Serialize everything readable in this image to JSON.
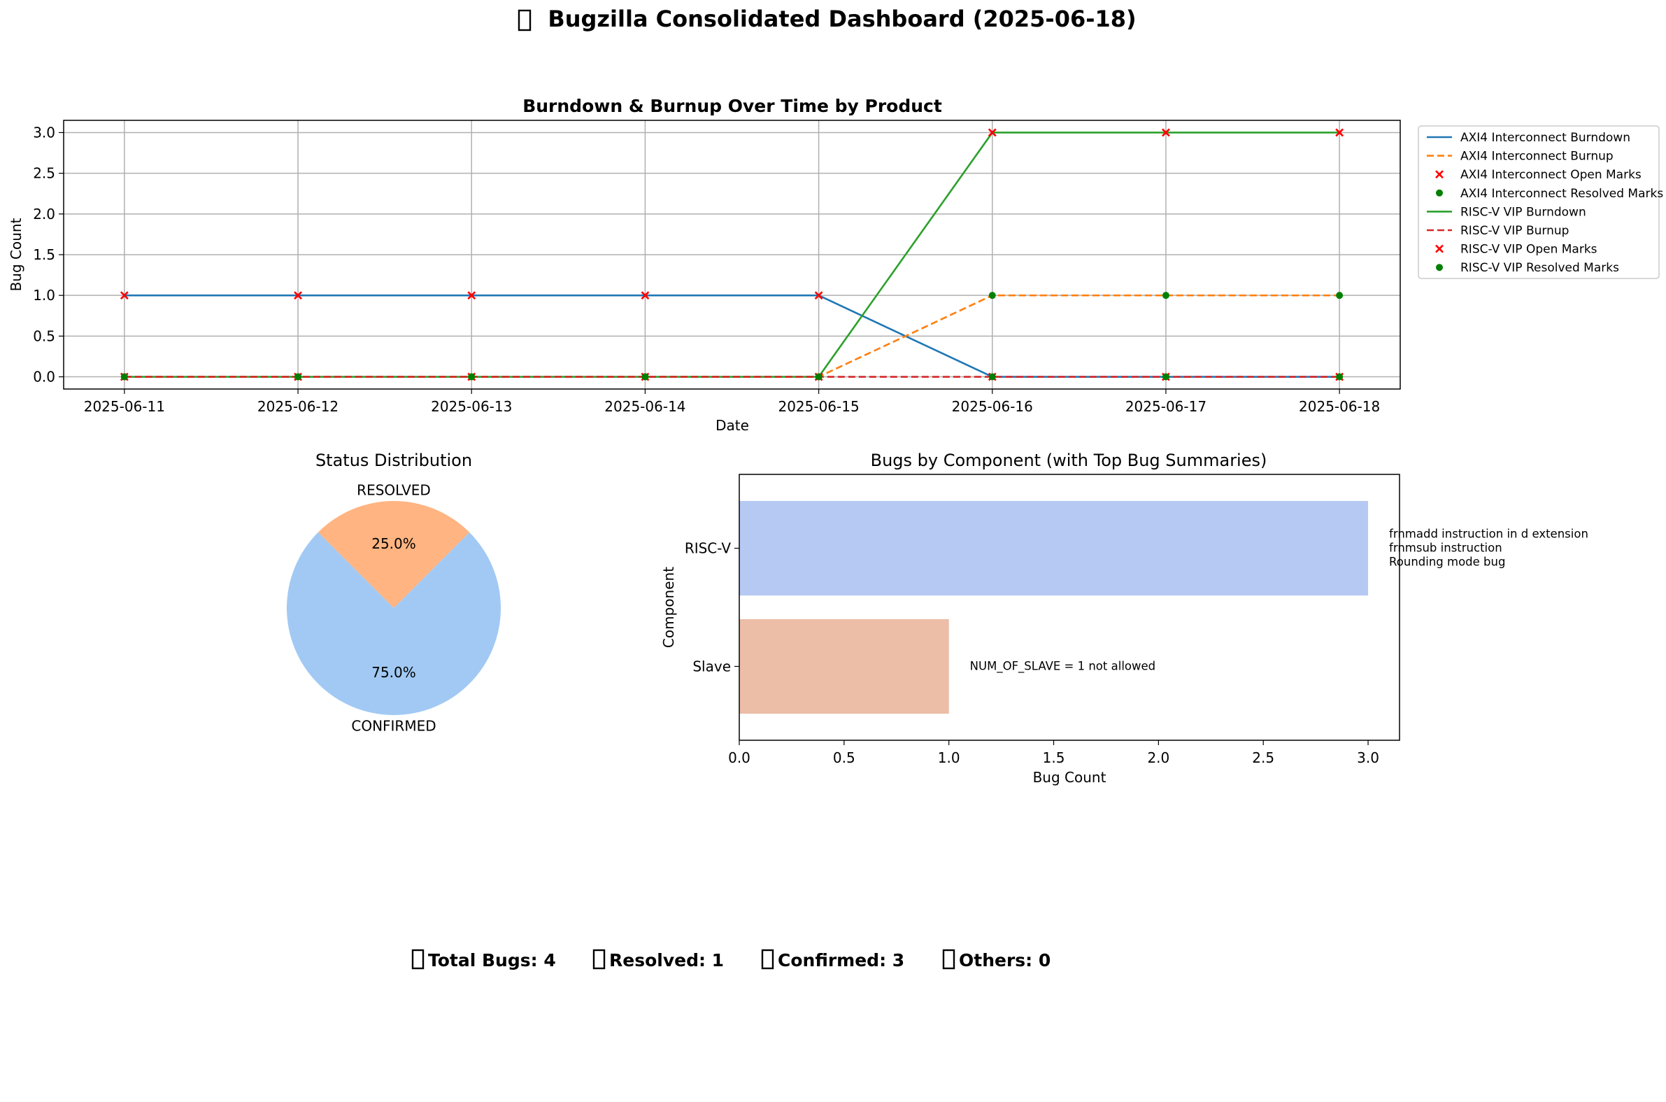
{
  "dashboard": {
    "title": "Bugzilla Consolidated Dashboard (2025-06-18)",
    "title_icon": "missing-glyph-box"
  },
  "chart_data": [
    {
      "type": "line",
      "title": "Burndown & Burnup Over Time by Product",
      "xlabel": "Date",
      "ylabel": "Bug Count",
      "x": [
        "2025-06-11",
        "2025-06-12",
        "2025-06-13",
        "2025-06-14",
        "2025-06-15",
        "2025-06-16",
        "2025-06-17",
        "2025-06-18"
      ],
      "ylim": [
        -0.15,
        3.15
      ],
      "yticks": [
        "0.0",
        "0.5",
        "1.0",
        "1.5",
        "2.0",
        "2.5",
        "3.0"
      ],
      "grid": true,
      "legend_placement": "outside-right",
      "series": [
        {
          "name": "AXI4 Interconnect Burndown",
          "kind": "line",
          "style": "solid",
          "color": "#1f77b4",
          "values": [
            1,
            1,
            1,
            1,
            1,
            0,
            0,
            0
          ]
        },
        {
          "name": "AXI4 Interconnect Burnup",
          "kind": "line",
          "style": "dashed",
          "color": "#ff7f0e",
          "values": [
            0,
            0,
            0,
            0,
            0,
            1,
            1,
            1
          ]
        },
        {
          "name": "AXI4 Interconnect Open Marks",
          "kind": "scatter",
          "marker": "x",
          "color": "#ff0000",
          "values": [
            1,
            1,
            1,
            1,
            1,
            0,
            0,
            0
          ]
        },
        {
          "name": "AXI4 Interconnect Resolved Marks",
          "kind": "scatter",
          "marker": "o",
          "color": "#008000",
          "values": [
            0,
            0,
            0,
            0,
            0,
            1,
            1,
            1
          ]
        },
        {
          "name": "RISC-V VIP Burndown",
          "kind": "line",
          "style": "solid",
          "color": "#2ca02c",
          "values": [
            0,
            0,
            0,
            0,
            0,
            3,
            3,
            3
          ]
        },
        {
          "name": "RISC-V VIP Burnup",
          "kind": "line",
          "style": "dashed",
          "color": "#d62728",
          "values": [
            0,
            0,
            0,
            0,
            0,
            0,
            0,
            0
          ]
        },
        {
          "name": "RISC-V VIP Open Marks",
          "kind": "scatter",
          "marker": "x",
          "color": "#ff0000",
          "values": [
            0,
            0,
            0,
            0,
            0,
            3,
            3,
            3
          ]
        },
        {
          "name": "RISC-V VIP Resolved Marks",
          "kind": "scatter",
          "marker": "o",
          "color": "#008000",
          "values": [
            0,
            0,
            0,
            0,
            0,
            0,
            0,
            0
          ]
        }
      ]
    },
    {
      "type": "pie",
      "title": "Status Distribution",
      "slices": [
        {
          "label": "RESOLVED",
          "value": 1,
          "pct": "25.0%",
          "color": "#ffb482"
        },
        {
          "label": "CONFIRMED",
          "value": 3,
          "pct": "75.0%",
          "color": "#a1c9f4"
        }
      ]
    },
    {
      "type": "bar",
      "orientation": "horizontal",
      "title": "Bugs by Component (with Top Bug Summaries)",
      "xlabel": "Bug Count",
      "ylabel": "Component",
      "xlim": [
        0,
        3.15
      ],
      "xticks": [
        "0.0",
        "0.5",
        "1.0",
        "1.5",
        "2.0",
        "2.5",
        "3.0"
      ],
      "categories": [
        "RISC-V",
        "Slave"
      ],
      "values": [
        3,
        1
      ],
      "colors": [
        "#b5c9f3",
        "#ecbda7"
      ],
      "annotations": [
        [
          "frnmadd instruction in d extension",
          "frnmsub instruction",
          "Rounding mode bug"
        ],
        [
          "NUM_OF_SLAVE = 1 not allowed"
        ]
      ]
    }
  ],
  "summary": {
    "total": "Total Bugs: 4",
    "resolved": "Resolved: 1",
    "confirmed": "Confirmed: 3",
    "others": "Others: 0"
  }
}
